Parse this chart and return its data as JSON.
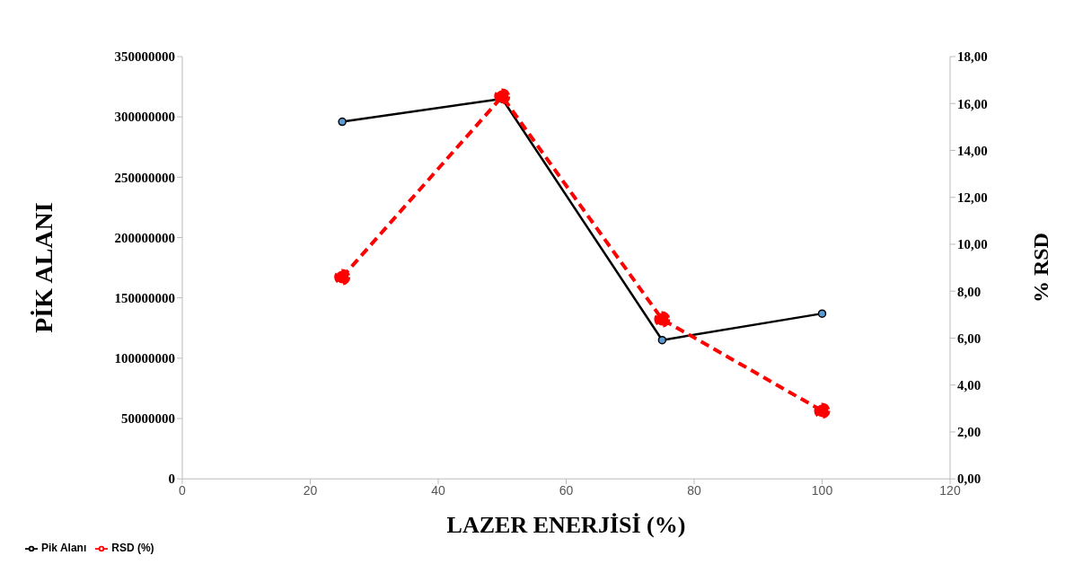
{
  "chart_data": {
    "type": "line",
    "xlabel": "LAZER ENERJİSİ (%)",
    "ylabel": "PİK ALANI",
    "y2label": "% RSD",
    "x": [
      25,
      50,
      75,
      100
    ],
    "series": [
      {
        "name": "Pik Alanı",
        "color": "#000000",
        "values": [
          296000000,
          315000000,
          115000000,
          137000000
        ],
        "line_style": "solid"
      },
      {
        "name": "RSD (%)",
        "color": "#ff0000",
        "values": [
          8.6,
          16.3,
          6.8,
          2.9
        ],
        "axis": "y2",
        "line_style": "dashed"
      }
    ],
    "xlim": [
      0,
      120
    ],
    "xticks": [
      0,
      20,
      40,
      60,
      80,
      100,
      120
    ],
    "ylim": [
      0,
      350000000
    ],
    "yticks": [
      0,
      50000000,
      100000000,
      150000000,
      200000000,
      250000000,
      300000000,
      350000000
    ],
    "y2lim": [
      0,
      18
    ],
    "y2ticks": [
      {
        "value": 0,
        "label": "0,00"
      },
      {
        "value": 2,
        "label": "2,00"
      },
      {
        "value": 4,
        "label": "4,00"
      },
      {
        "value": 6,
        "label": "6,00"
      },
      {
        "value": 8,
        "label": "8,00"
      },
      {
        "value": 10,
        "label": "10,00"
      },
      {
        "value": 12,
        "label": "12,00"
      },
      {
        "value": 14,
        "label": "14,00"
      },
      {
        "value": 16,
        "label": "16,00"
      },
      {
        "value": 18,
        "label": "18,00"
      }
    ],
    "grid": false,
    "legend": "bottom left",
    "marker": "circle"
  }
}
